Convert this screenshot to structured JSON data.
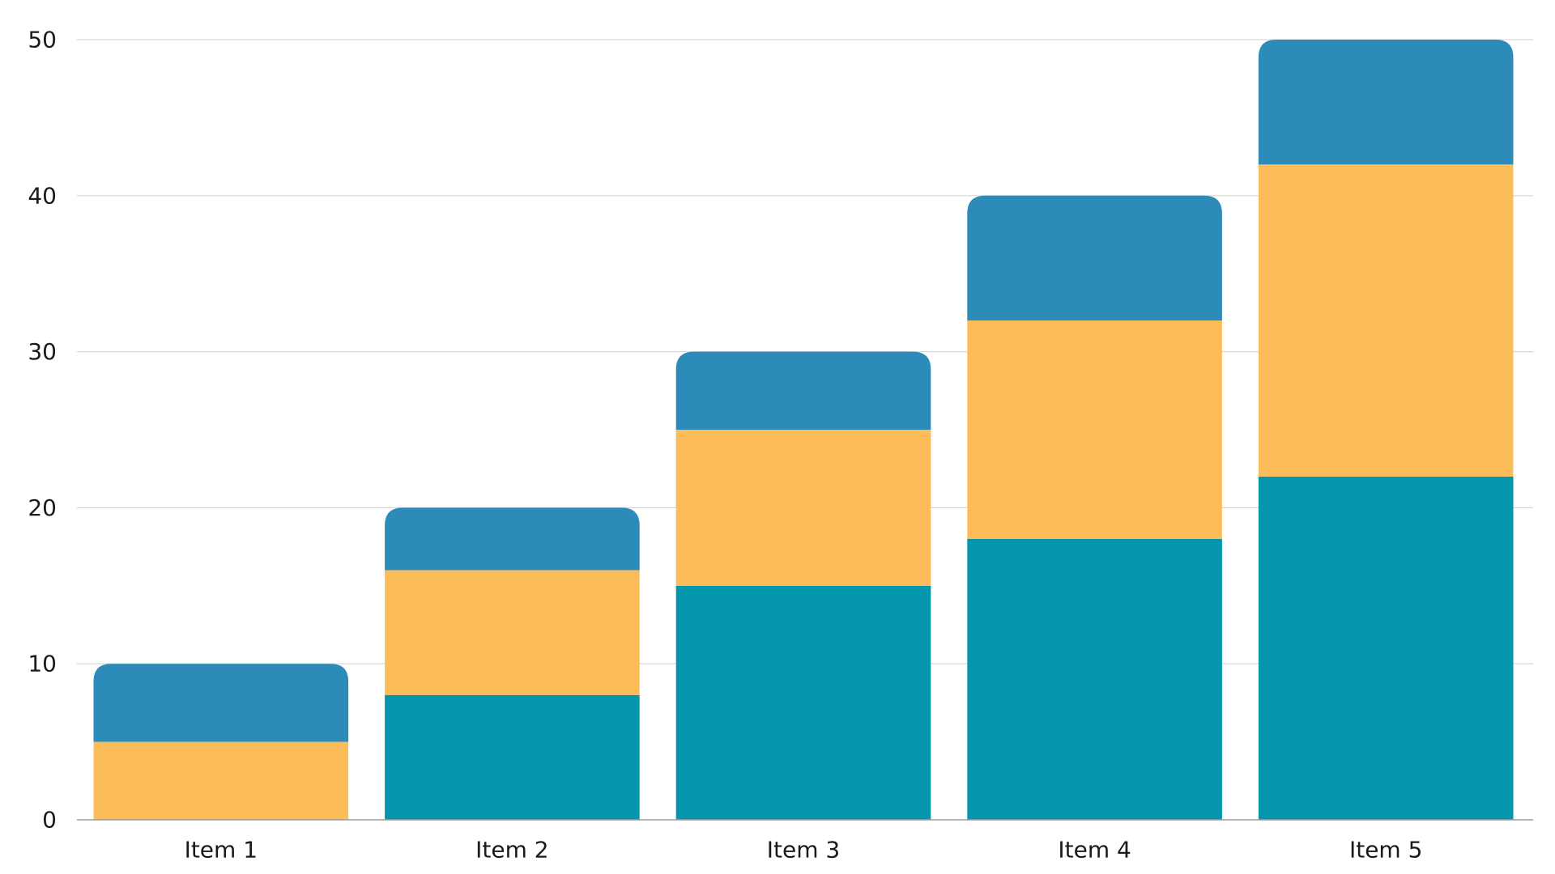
{
  "chart_data": {
    "type": "bar",
    "stacked": true,
    "title": "",
    "xlabel": "",
    "ylabel": "",
    "categories": [
      "Item 1",
      "Item 2",
      "Item 3",
      "Item 4",
      "Item 5"
    ],
    "series": [
      {
        "values": [
          0,
          8,
          15,
          18,
          22
        ],
        "color": "#0396ad"
      },
      {
        "values": [
          5,
          8,
          10,
          14,
          20
        ],
        "color": "#fdbc5a"
      },
      {
        "values": [
          5,
          4,
          5,
          8,
          8
        ],
        "color": "#2d8bba"
      }
    ],
    "ylim": [
      0,
      50
    ],
    "yticks": [
      0,
      10,
      20,
      30,
      40,
      50
    ],
    "grid": true,
    "legend": "none",
    "rounded_top": true
  }
}
